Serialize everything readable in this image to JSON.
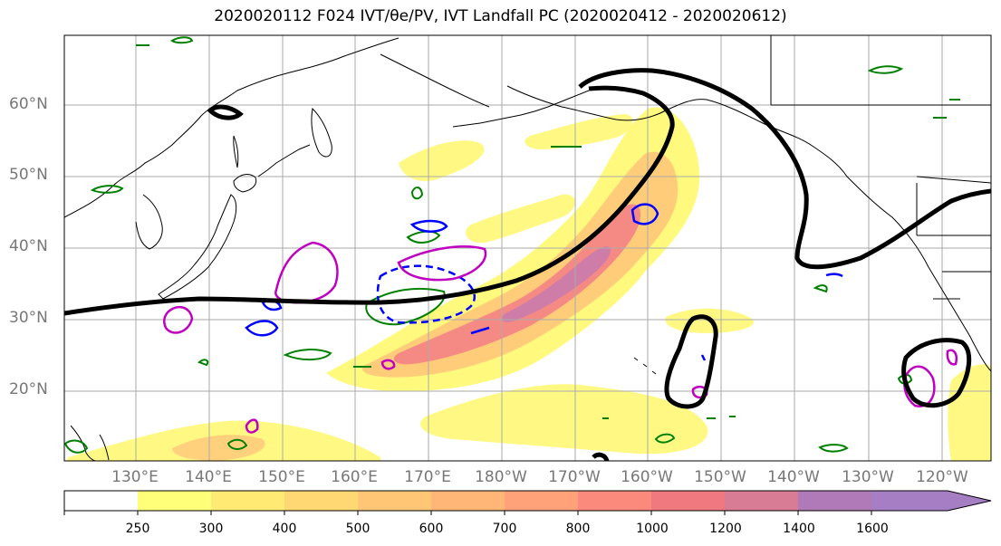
{
  "title": "2020020112 F024 IVT/θe/PV, IVT Landfall PC (2020020412 - 2020020612)",
  "lat_labels": [
    "60°N",
    "50°N",
    "40°N",
    "30°N",
    "20°N"
  ],
  "lon_labels": [
    "130°E",
    "140°E",
    "150°E",
    "160°E",
    "170°E",
    "180°W",
    "170°W",
    "160°W",
    "150°W",
    "140°W",
    "130°W",
    "120°W"
  ],
  "colorbar": {
    "ticks": [
      "250",
      "300",
      "400",
      "500",
      "600",
      "700",
      "800",
      "1000",
      "1200",
      "1400",
      "1600"
    ],
    "colors": [
      "#ffff7a",
      "#ffea73",
      "#ffd874",
      "#ffc775",
      "#ffb677",
      "#ffa279",
      "#fb8a7d",
      "#f0797f",
      "#d87b94",
      "#b07ab8",
      "#a57ec4"
    ]
  },
  "colors": {
    "ivt_low": "#fff86f",
    "ivt_mid": "#ffc77a",
    "ivt_high": "#f48284",
    "ivt_max": "#c77bb0",
    "landfall_pc": "#000000",
    "pv_contour": "#c000c0",
    "theta_e_contour": "#008000",
    "negative_contour": "#0000ff",
    "grid": "#aaaaaa",
    "coastline": "#000000"
  }
}
